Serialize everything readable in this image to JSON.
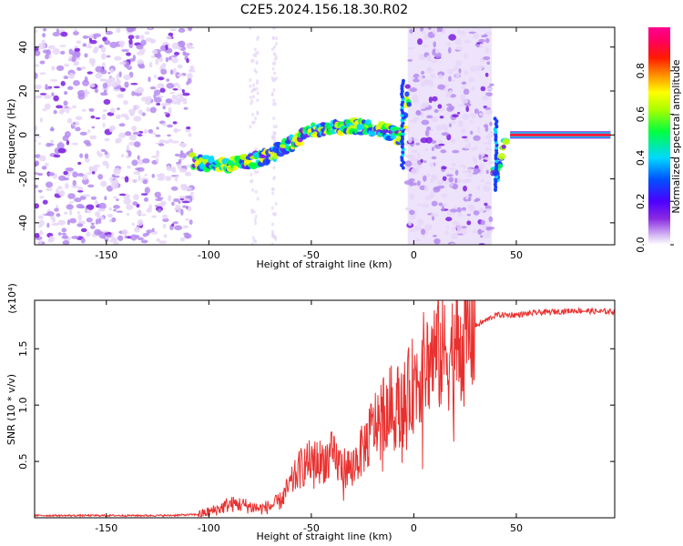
{
  "title": "C2E5.2024.156.18.30.R02",
  "chart_data": [
    {
      "type": "heatmap",
      "title": "C2E5.2024.156.18.30.R02",
      "xlabel": "Height of straight line (km)",
      "ylabel": "Frequency (Hz)",
      "xlim": [
        -185,
        98
      ],
      "ylim": [
        -50,
        49
      ],
      "xticks": [
        -150,
        -100,
        -50,
        0,
        50
      ],
      "yticks": [
        -40,
        -20,
        0,
        20,
        40
      ],
      "colorbar": {
        "label": "Normalized spectral amplitude",
        "range": [
          0,
          1
        ],
        "ticks": [
          0.0,
          0.2,
          0.4,
          0.6,
          0.8
        ],
        "colormap": "rainbow (purple-blue-cyan-green-yellow-orange-red-magenta)"
      },
      "features": {
        "noise_regions_km": [
          [
            -185,
            -108
          ],
          [
            -3,
            38
          ]
        ],
        "signal_track": {
          "x": [
            -108,
            -100,
            -90,
            -80,
            -70,
            -60,
            -50,
            -40,
            -30,
            -20,
            -10,
            -6,
            -3,
            0,
            5,
            10,
            20,
            30,
            40,
            45,
            50,
            60,
            70,
            80,
            90,
            96
          ],
          "y": [
            -12,
            -13,
            -14,
            -12,
            -9,
            -4,
            2,
            3,
            4,
            3,
            1,
            -2,
            20,
            0,
            0,
            0,
            0,
            -2,
            -20,
            0,
            0,
            0,
            0,
            0,
            0,
            0
          ]
        },
        "carrier_line": {
          "x_range": [
            47,
            96
          ],
          "frequency_hz": 0,
          "amplitude": 0.95
        }
      }
    },
    {
      "type": "line",
      "xlabel": "Height of straight line (km)",
      "ylabel": "SNR (10 * v/v)",
      "scale_label": "(x10⁴)",
      "xlim": [
        -185,
        98
      ],
      "ylim": [
        0,
        1.93
      ],
      "xticks": [
        -150,
        -100,
        -50,
        0,
        50
      ],
      "yticks": [
        0.5,
        1.0,
        1.5
      ],
      "ytick_labels": [
        "0.5",
        "1.0",
        "1.5"
      ],
      "line_color": "#e8312f",
      "series": [
        {
          "x": [
            -185,
            -160,
            -140,
            -120,
            -105,
            -100,
            -95,
            -90,
            -85,
            -80,
            -75,
            -70,
            -65,
            -60,
            -55,
            -50,
            -45,
            -40,
            -35,
            -30,
            -25,
            -20,
            -15,
            -10,
            -5,
            0,
            5,
            10,
            15,
            20,
            25,
            30,
            35,
            40,
            50,
            60,
            70,
            80,
            90,
            97
          ],
          "y": [
            0.02,
            0.02,
            0.02,
            0.02,
            0.03,
            0.05,
            0.08,
            0.12,
            0.12,
            0.1,
            0.08,
            0.1,
            0.15,
            0.3,
            0.45,
            0.5,
            0.5,
            0.55,
            0.45,
            0.45,
            0.6,
            0.8,
            0.95,
            1.0,
            1.0,
            1.2,
            1.35,
            1.45,
            1.45,
            1.5,
            1.55,
            1.7,
            1.75,
            1.8,
            1.8,
            1.82,
            1.83,
            1.84,
            1.83,
            1.83
          ]
        }
      ]
    }
  ]
}
